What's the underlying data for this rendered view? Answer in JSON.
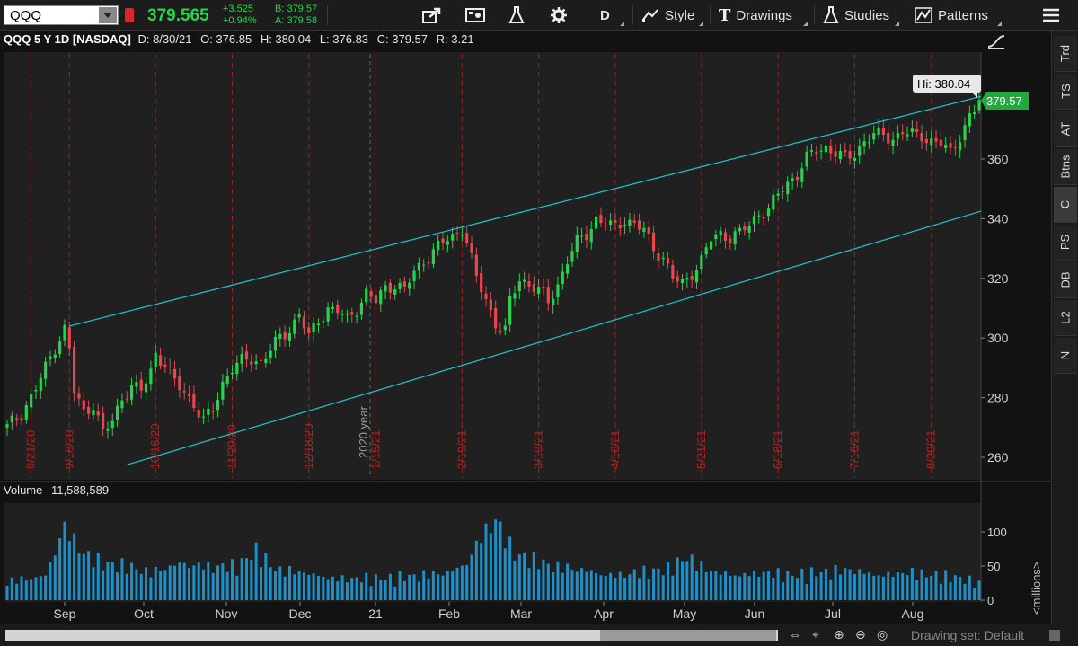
{
  "toolbar": {
    "symbol": "QQQ",
    "last": "379.565",
    "change": "+3.525",
    "change_pct": "+0.94%",
    "bid": "B: 379.57",
    "ask": "A: 379.58",
    "aggregation": "D",
    "style_label": "Style",
    "drawings_label": "Drawings",
    "studies_label": "Studies",
    "patterns_label": "Patterns"
  },
  "info": {
    "title": "QQQ 5 Y 1D [NASDAQ]",
    "date": "D: 8/30/21",
    "open": "O: 376.85",
    "high": "H: 380.04",
    "low": "L: 376.83",
    "close": "C: 379.57",
    "range": "R: 3.21"
  },
  "price_panel": {
    "y_ticks": [
      "360",
      "340",
      "320",
      "300",
      "280",
      "260"
    ],
    "last_price_badge": "379.57",
    "hi_label": "Hi: 380.04",
    "year_marker": "2020 year",
    "expiration_dates": [
      "8/21/20",
      "9/18/20",
      "10/16/20",
      "11/20/20",
      "12/18/20",
      "1/15/21",
      "2/19/21",
      "3/19/21",
      "4/16/21",
      "5/21/21",
      "6/18/21",
      "7/16/21",
      "8/20/21"
    ]
  },
  "volume_panel": {
    "label": "Volume",
    "value": "11,588,589",
    "y_ticks": [
      "100",
      "50",
      "0"
    ],
    "unit": "<millions>"
  },
  "x_axis": {
    "labels": [
      "Sep",
      "Oct",
      "Nov",
      "Dec",
      "21",
      "Feb",
      "Mar",
      "Apr",
      "May",
      "Jun",
      "Jul",
      "Aug"
    ]
  },
  "right_tabs": [
    "Trd",
    "TS",
    "AT",
    "Btns",
    "C",
    "PS",
    "DB",
    "L2",
    "N"
  ],
  "status": {
    "drawing_set": "Drawing set: Default"
  },
  "colors": {
    "up": "#28d24b",
    "down": "#e8454f",
    "channel": "#19c7d6",
    "volume": "#1f8fc8",
    "expiration": "#a31d1d"
  },
  "chart_data": {
    "type": "candlestick",
    "ylim": [
      255,
      383
    ],
    "close_path": [
      [
        0,
        270
      ],
      [
        3,
        275
      ],
      [
        6,
        283
      ],
      [
        8,
        290
      ],
      [
        10,
        297
      ],
      [
        12,
        303
      ],
      [
        13,
        296
      ],
      [
        14,
        282
      ],
      [
        16,
        275
      ],
      [
        18,
        278
      ],
      [
        20,
        268
      ],
      [
        22,
        272
      ],
      [
        24,
        280
      ],
      [
        26,
        284
      ],
      [
        28,
        282
      ],
      [
        30,
        289
      ],
      [
        31,
        295
      ],
      [
        33,
        291
      ],
      [
        35,
        285
      ],
      [
        37,
        282
      ],
      [
        39,
        278
      ],
      [
        41,
        272
      ],
      [
        43,
        276
      ],
      [
        45,
        285
      ],
      [
        47,
        290
      ],
      [
        49,
        292
      ],
      [
        51,
        293
      ],
      [
        53,
        292
      ],
      [
        55,
        296
      ],
      [
        57,
        300
      ],
      [
        59,
        303
      ],
      [
        61,
        308
      ],
      [
        63,
        300
      ],
      [
        65,
        306
      ],
      [
        67,
        310
      ],
      [
        69,
        309
      ],
      [
        71,
        306
      ],
      [
        73,
        310
      ],
      [
        75,
        315
      ],
      [
        77,
        312
      ],
      [
        79,
        317
      ],
      [
        81,
        318
      ],
      [
        83,
        316
      ],
      [
        85,
        322
      ],
      [
        87,
        326
      ],
      [
        89,
        329
      ],
      [
        91,
        332
      ],
      [
        93,
        334
      ],
      [
        95,
        337
      ],
      [
        96,
        332
      ],
      [
        98,
        320
      ],
      [
        100,
        313
      ],
      [
        102,
        305
      ],
      [
        104,
        302
      ],
      [
        105,
        312
      ],
      [
        107,
        320
      ],
      [
        109,
        318
      ],
      [
        111,
        316
      ],
      [
        113,
        312
      ],
      [
        115,
        318
      ],
      [
        117,
        326
      ],
      [
        119,
        332
      ],
      [
        121,
        335
      ],
      [
        123,
        340
      ],
      [
        125,
        338
      ],
      [
        127,
        337
      ],
      [
        129,
        340
      ],
      [
        131,
        338
      ],
      [
        133,
        336
      ],
      [
        135,
        330
      ],
      [
        137,
        327
      ],
      [
        139,
        320
      ],
      [
        141,
        318
      ],
      [
        143,
        322
      ],
      [
        145,
        326
      ],
      [
        147,
        333
      ],
      [
        149,
        335
      ],
      [
        151,
        334
      ],
      [
        153,
        335
      ],
      [
        155,
        338
      ],
      [
        157,
        342
      ],
      [
        159,
        343
      ],
      [
        161,
        348
      ],
      [
        163,
        352
      ],
      [
        165,
        355
      ],
      [
        167,
        360
      ],
      [
        169,
        363
      ],
      [
        171,
        364
      ],
      [
        173,
        362
      ],
      [
        175,
        360
      ],
      [
        177,
        362
      ],
      [
        179,
        366
      ],
      [
        181,
        368
      ],
      [
        183,
        368
      ],
      [
        185,
        367
      ],
      [
        187,
        369
      ],
      [
        189,
        368
      ],
      [
        191,
        368
      ],
      [
        193,
        366
      ],
      [
        195,
        365
      ],
      [
        197,
        362
      ],
      [
        199,
        368
      ],
      [
        201,
        374
      ],
      [
        202,
        376
      ],
      [
        203,
        379.57
      ]
    ],
    "bars": 204,
    "upper_channel": [
      [
        13,
        304
      ],
      [
        203,
        381
      ]
    ],
    "lower_channel": [
      [
        25,
        257.5
      ],
      [
        203,
        342.5
      ]
    ],
    "volume_ylim": [
      0,
      140
    ],
    "volume_path": [
      [
        0,
        30
      ],
      [
        8,
        40
      ],
      [
        12,
        120
      ],
      [
        16,
        75
      ],
      [
        20,
        60
      ],
      [
        25,
        55
      ],
      [
        30,
        45
      ],
      [
        36,
        60
      ],
      [
        42,
        55
      ],
      [
        48,
        55
      ],
      [
        52,
        80
      ],
      [
        56,
        50
      ],
      [
        62,
        45
      ],
      [
        68,
        35
      ],
      [
        74,
        35
      ],
      [
        80,
        35
      ],
      [
        86,
        40
      ],
      [
        92,
        45
      ],
      [
        96,
        60
      ],
      [
        99,
        105
      ],
      [
        102,
        130
      ],
      [
        106,
        75
      ],
      [
        110,
        65
      ],
      [
        114,
        55
      ],
      [
        120,
        50
      ],
      [
        126,
        40
      ],
      [
        132,
        45
      ],
      [
        138,
        50
      ],
      [
        142,
        70
      ],
      [
        146,
        50
      ],
      [
        152,
        40
      ],
      [
        158,
        45
      ],
      [
        164,
        40
      ],
      [
        170,
        45
      ],
      [
        176,
        50
      ],
      [
        182,
        40
      ],
      [
        188,
        45
      ],
      [
        194,
        40
      ],
      [
        200,
        35
      ],
      [
        203,
        25
      ]
    ]
  }
}
